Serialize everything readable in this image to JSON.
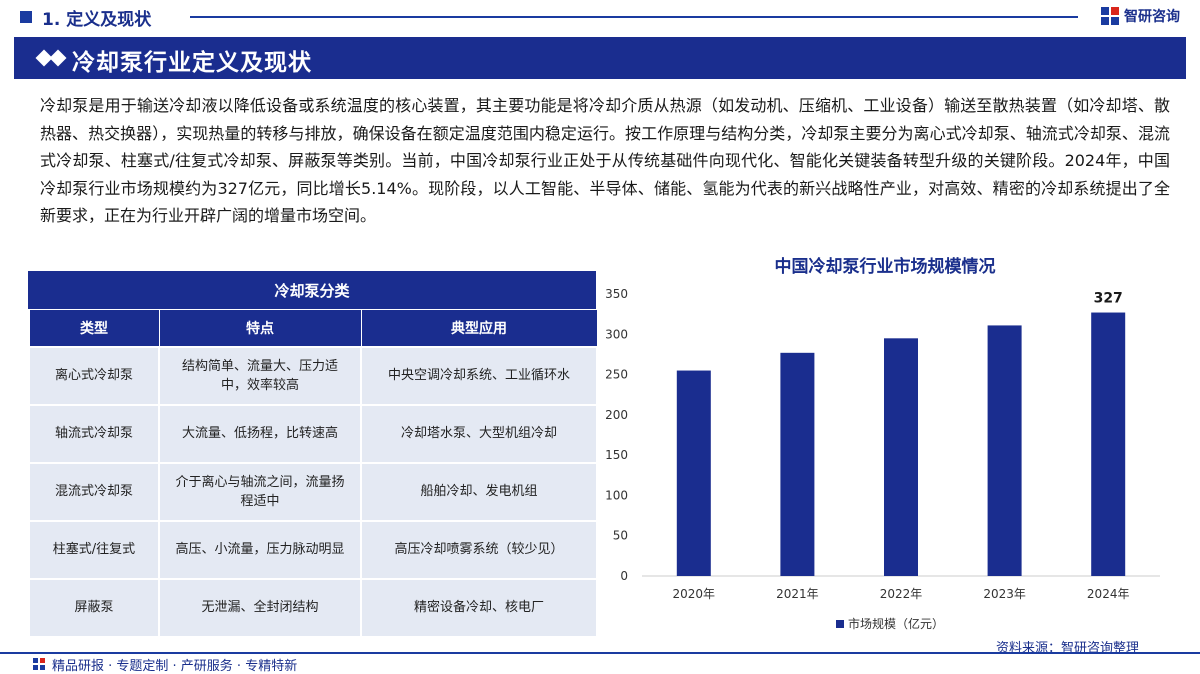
{
  "header": {
    "section_title": "1. 定义及现状",
    "brand": "智研咨询"
  },
  "banner": {
    "title": "冷却泵行业定义及现状"
  },
  "paragraph": "冷却泵是用于输送冷却液以降低设备或系统温度的核心装置，其主要功能是将冷却介质从热源（如发动机、压缩机、工业设备）输送至散热装置（如冷却塔、散热器、热交换器），实现热量的转移与排放，确保设备在额定温度范围内稳定运行。按工作原理与结构分类，冷却泵主要分为离心式冷却泵、轴流式冷却泵、混流式冷却泵、柱塞式/往复式冷却泵、屏蔽泵等类别。当前，中国冷却泵行业正处于从传统基础件向现代化、智能化关键装备转型升级的关键阶段。2024年，中国冷却泵行业市场规模约为327亿元，同比增长5.14%。现阶段，以人工智能、半导体、储能、氢能为代表的新兴战略性产业，对高效、精密的冷却系统提出了全新要求，正在为行业开辟广阔的增量市场空间。",
  "table": {
    "caption": "冷却泵分类",
    "headers": [
      "类型",
      "特点",
      "典型应用"
    ],
    "rows": [
      [
        "离心式冷却泵",
        "结构简单、流量大、压力适中，效率较高",
        "中央空调冷却系统、工业循环水"
      ],
      [
        "轴流式冷却泵",
        "大流量、低扬程，比转速高",
        "冷却塔水泵、大型机组冷却"
      ],
      [
        "混流式冷却泵",
        "介于离心与轴流之间，流量扬程适中",
        "船舶冷却、发电机组"
      ],
      [
        "柱塞式/往复式",
        "高压、小流量，压力脉动明显",
        "高压冷却喷雾系统（较少见）"
      ],
      [
        "屏蔽泵",
        "无泄漏、全封闭结构",
        "精密设备冷却、核电厂"
      ]
    ]
  },
  "chart_data": {
    "type": "bar",
    "title": "中国冷却泵行业市场规模情况",
    "categories": [
      "2020年",
      "2021年",
      "2022年",
      "2023年",
      "2024年"
    ],
    "series": [
      {
        "name": "市场规模（亿元）",
        "values": [
          255,
          277,
          295,
          311,
          327
        ]
      }
    ],
    "data_labels": [
      null,
      null,
      null,
      null,
      "327"
    ],
    "ylim": [
      0,
      350
    ],
    "yticks": [
      "0",
      "50",
      "100",
      "150",
      "200",
      "250",
      "300",
      "350"
    ],
    "bar_color": "#1a2d8f",
    "grid": false,
    "legend_position": "bottom-left"
  },
  "source": "资料来源：智研咨询整理",
  "footer": "精品研报 · 专题定制 · 产研服务 · 专精特新"
}
